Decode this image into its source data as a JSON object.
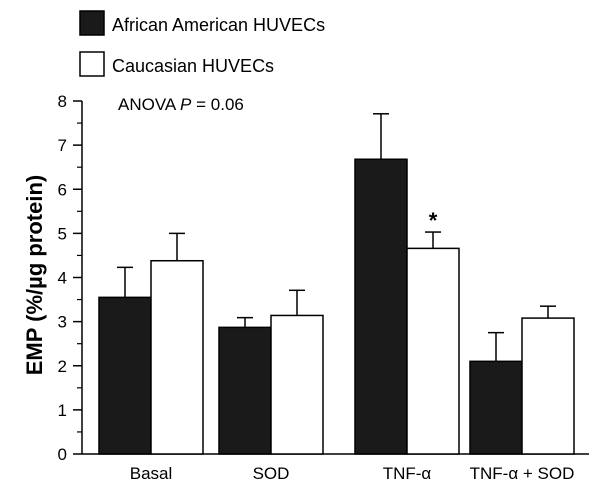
{
  "chart_data": {
    "type": "bar",
    "categories": [
      "Basal",
      "SOD",
      "TNF-α",
      "TNF-α + SOD"
    ],
    "series": [
      {
        "name": "African American HUVECs",
        "color": "#1a1a1a",
        "values": [
          3.55,
          2.87,
          6.68,
          2.1
        ],
        "errors": [
          0.68,
          0.22,
          1.03,
          0.65
        ]
      },
      {
        "name": "Caucasian HUVECs",
        "color": "#ffffff",
        "values": [
          4.38,
          3.14,
          4.66,
          3.08
        ],
        "errors": [
          0.62,
          0.57,
          0.37,
          0.27
        ]
      }
    ],
    "ylabel": "EMP (%/µg protein)",
    "xlabel": "",
    "ylim": [
      0,
      8
    ],
    "yticks": [
      "0",
      "1",
      "2",
      "3",
      "4",
      "5",
      "6",
      "7",
      "8"
    ],
    "annotation": {
      "prefix": "ANOVA ",
      "italic": "P",
      "suffix": " = 0.06"
    },
    "significance": [
      {
        "category_index": 2,
        "series_index": 1,
        "marker": "*"
      }
    ],
    "legend_position": "top-left",
    "grid": false
  }
}
